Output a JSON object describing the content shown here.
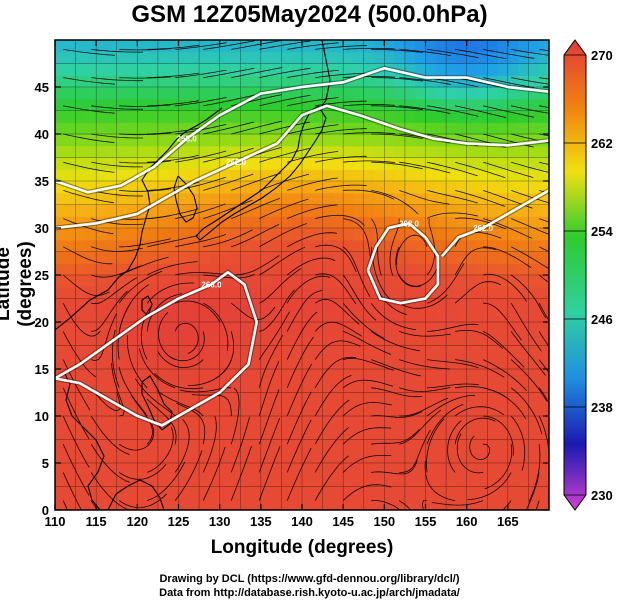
{
  "title": "GSM 12Z05May2024 (500.0hPa)",
  "xlabel": "Longitude (degrees)",
  "ylabel": "Latitude  (degrees)",
  "credits": [
    "Drawing by DCL (https://www.gfd-dennou.org/library/dcl/)",
    "Data from http://database.rish.kyoto-u.ac.jp/arch/jmadata/"
  ],
  "chart_data": {
    "type": "heatmap",
    "variable_units_note": "temperature-like scalar field with streamlines and white contours",
    "xlim": [
      110,
      170
    ],
    "ylim": [
      0,
      50
    ],
    "x_ticks": [
      110,
      115,
      120,
      125,
      130,
      135,
      140,
      145,
      150,
      155,
      160,
      165
    ],
    "y_ticks": [
      0,
      5,
      10,
      15,
      20,
      25,
      30,
      35,
      40,
      45
    ],
    "grid": true,
    "colorbar": {
      "min": 230,
      "max": 270,
      "ticks": [
        230,
        238,
        246,
        254,
        262,
        270
      ],
      "colors": [
        "#d23fd2",
        "#1a1ab0",
        "#1f8fe0",
        "#2fd0a0",
        "#2ecc2e",
        "#f0e010",
        "#f08010",
        "#e23a3a"
      ]
    },
    "contours": [
      {
        "label": "262.0",
        "points": [
          [
            110,
            30
          ],
          [
            115,
            30.5
          ],
          [
            120,
            31.5
          ],
          [
            123,
            33
          ],
          [
            127,
            35
          ],
          [
            132,
            37
          ],
          [
            137,
            39
          ],
          [
            140,
            42
          ],
          [
            143,
            43
          ],
          [
            147,
            42
          ],
          [
            152,
            40.5
          ],
          [
            156,
            39.5
          ],
          [
            160,
            39
          ],
          [
            165,
            38.8
          ],
          [
            170,
            39.3
          ]
        ]
      },
      {
        "label": "258.0",
        "points": [
          [
            110,
            35
          ],
          [
            114,
            33.8
          ],
          [
            118,
            34.5
          ],
          [
            122,
            36.5
          ],
          [
            126,
            39.5
          ],
          [
            130,
            42
          ],
          [
            135,
            44.3
          ],
          [
            140,
            45
          ],
          [
            145,
            45.5
          ],
          [
            150,
            47
          ],
          [
            155,
            46
          ],
          [
            160,
            46
          ],
          [
            165,
            45
          ],
          [
            170,
            44.5
          ]
        ]
      },
      {
        "label": "266.0",
        "points": [
          [
            110,
            14
          ],
          [
            113,
            15.5
          ],
          [
            117,
            18
          ],
          [
            121,
            20.5
          ],
          [
            125,
            22.5
          ],
          [
            129,
            24
          ],
          [
            131,
            25.3
          ],
          [
            133,
            24
          ],
          [
            134.5,
            20
          ],
          [
            133.5,
            15.5
          ],
          [
            130,
            12.5
          ],
          [
            126,
            10.5
          ],
          [
            123,
            9
          ],
          [
            120,
            10
          ],
          [
            116,
            12
          ],
          [
            113,
            13.5
          ],
          [
            110,
            14
          ]
        ]
      },
      {
        "label": "262.0",
        "points": [
          [
            148,
            25.5
          ],
          [
            149,
            28
          ],
          [
            150.5,
            30
          ],
          [
            153,
            30.5
          ],
          [
            155,
            29
          ],
          [
            156.5,
            27
          ],
          [
            156.5,
            24
          ],
          [
            155,
            22.5
          ],
          [
            152,
            22
          ],
          [
            149.5,
            22.5
          ],
          [
            148,
            25.5
          ]
        ]
      },
      {
        "label": "262.0",
        "points": [
          [
            157,
            27
          ],
          [
            159,
            29
          ],
          [
            162,
            30
          ],
          [
            165,
            31.5
          ],
          [
            168,
            33
          ],
          [
            170,
            34
          ]
        ]
      }
    ],
    "streamline_features": [
      {
        "type": "anticyclone",
        "lon": 125,
        "lat": 19
      },
      {
        "type": "cyclonic_low",
        "lon": 153,
        "lat": 25
      },
      {
        "type": "anticyclone",
        "lon": 163,
        "lat": 7
      }
    ]
  }
}
